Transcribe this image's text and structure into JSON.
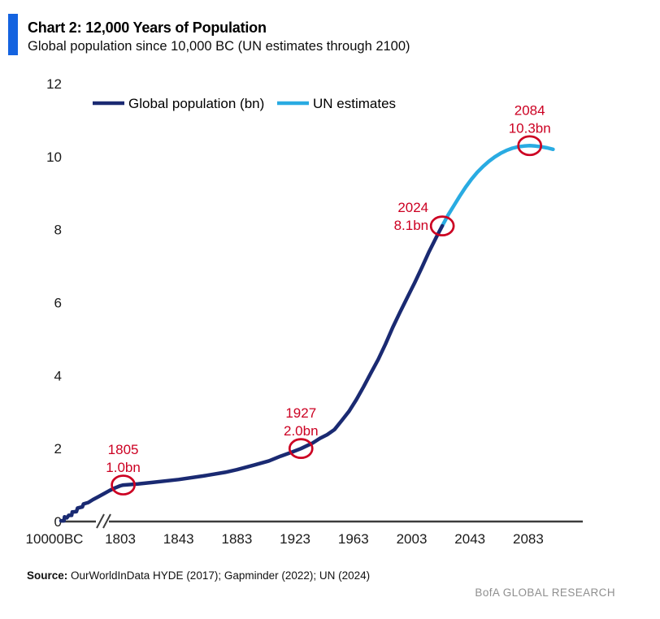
{
  "header": {
    "title": "Chart 2: 12,000 Years of Population",
    "subtitle": "Global population since 10,000 BC (UN estimates through 2100)",
    "accent_color": "#1463e0"
  },
  "footer": {
    "source_label": "Source:",
    "source_text": " OurWorldInData HYDE (2017); Gapminder (2022); UN (2024)",
    "brand": "BofA GLOBAL RESEARCH"
  },
  "chart_data": {
    "type": "line",
    "title": "Chart 2: 12,000 Years of Population",
    "subtitle": "Global population since 10,000 BC (UN estimates through 2100)",
    "ylabel": "",
    "xlabel": "",
    "ylim": [
      0,
      12
    ],
    "yticks": [
      0,
      2,
      4,
      6,
      8,
      10,
      12
    ],
    "xtick_labels": [
      "10000BC",
      "1803",
      "1843",
      "1883",
      "1923",
      "1963",
      "2003",
      "2043",
      "2083"
    ],
    "xtick_years": [
      null,
      1803,
      1843,
      1883,
      1923,
      1963,
      2003,
      2043,
      2083
    ],
    "axis_break_after_first_tick": true,
    "grid": false,
    "legend_position": "top-inline",
    "colors": {
      "population": "#1a2a72",
      "un_estimates": "#29abe2",
      "annotation": "#cc0022",
      "axis": "#3d3d3d"
    },
    "series": [
      {
        "name": "Global population (bn)",
        "color_key": "population",
        "points": [
          [
            1803,
            0.98
          ],
          [
            1805,
            1.0
          ],
          [
            1815,
            1.03
          ],
          [
            1825,
            1.07
          ],
          [
            1843,
            1.15
          ],
          [
            1860,
            1.25
          ],
          [
            1875,
            1.35
          ],
          [
            1883,
            1.42
          ],
          [
            1895,
            1.55
          ],
          [
            1905,
            1.66
          ],
          [
            1913,
            1.79
          ],
          [
            1920,
            1.89
          ],
          [
            1927,
            2.0
          ],
          [
            1935,
            2.15
          ],
          [
            1940,
            2.28
          ],
          [
            1945,
            2.38
          ],
          [
            1950,
            2.52
          ],
          [
            1955,
            2.77
          ],
          [
            1960,
            3.02
          ],
          [
            1965,
            3.34
          ],
          [
            1970,
            3.69
          ],
          [
            1975,
            4.07
          ],
          [
            1980,
            4.44
          ],
          [
            1985,
            4.86
          ],
          [
            1990,
            5.32
          ],
          [
            1995,
            5.74
          ],
          [
            2000,
            6.14
          ],
          [
            2005,
            6.54
          ],
          [
            2010,
            6.96
          ],
          [
            2015,
            7.4
          ],
          [
            2020,
            7.8
          ],
          [
            2024,
            8.1
          ]
        ]
      },
      {
        "name": "UN estimates",
        "color_key": "un_estimates",
        "points": [
          [
            2024,
            8.1
          ],
          [
            2028,
            8.4
          ],
          [
            2032,
            8.66
          ],
          [
            2036,
            8.92
          ],
          [
            2040,
            9.16
          ],
          [
            2044,
            9.38
          ],
          [
            2048,
            9.57
          ],
          [
            2052,
            9.73
          ],
          [
            2056,
            9.87
          ],
          [
            2060,
            9.99
          ],
          [
            2064,
            10.09
          ],
          [
            2068,
            10.17
          ],
          [
            2072,
            10.23
          ],
          [
            2076,
            10.27
          ],
          [
            2080,
            10.29
          ],
          [
            2084,
            10.3
          ],
          [
            2088,
            10.29
          ],
          [
            2092,
            10.27
          ],
          [
            2096,
            10.24
          ],
          [
            2100,
            10.2
          ]
        ]
      }
    ],
    "pre_1803_compressed_segment": {
      "points_frac_value": [
        [
          0.0,
          0.02
        ],
        [
          0.05,
          0.02
        ],
        [
          0.06,
          0.13
        ],
        [
          0.1,
          0.1
        ],
        [
          0.13,
          0.17
        ],
        [
          0.18,
          0.17
        ],
        [
          0.19,
          0.26
        ],
        [
          0.26,
          0.27
        ],
        [
          0.28,
          0.37
        ],
        [
          0.36,
          0.4
        ],
        [
          0.38,
          0.48
        ],
        [
          0.46,
          0.52
        ],
        [
          0.54,
          0.6
        ],
        [
          0.63,
          0.68
        ],
        [
          0.72,
          0.76
        ],
        [
          0.82,
          0.85
        ],
        [
          0.91,
          0.92
        ],
        [
          1.0,
          0.98
        ]
      ]
    },
    "annotations": [
      {
        "year_label": "1805",
        "value_label": "1.0bn",
        "year": 1805,
        "value": 1.0,
        "placement": "above"
      },
      {
        "year_label": "1927",
        "value_label": "2.0bn",
        "year": 1927,
        "value": 2.0,
        "placement": "above"
      },
      {
        "year_label": "2024",
        "value_label": "8.1bn",
        "year": 2024,
        "value": 8.1,
        "placement": "left"
      },
      {
        "year_label": "2084",
        "value_label": "10.3bn",
        "year": 2084,
        "value": 10.3,
        "placement": "above"
      }
    ]
  }
}
